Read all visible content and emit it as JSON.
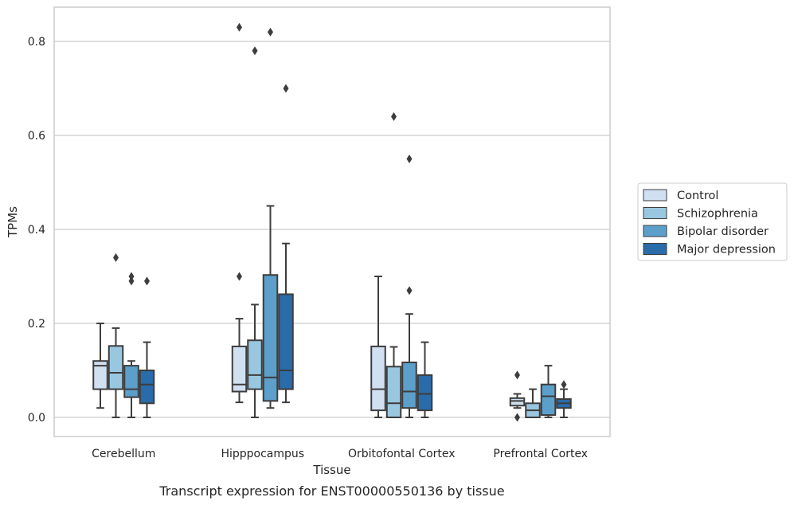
{
  "caption": "Transcript expression for ENST00000550136 by tissue",
  "chart_data": {
    "type": "box",
    "xlabel": "Tissue",
    "ylabel": "TPMs",
    "ylim": [
      -0.04,
      0.873
    ],
    "yticks": [
      0.0,
      0.2,
      0.4,
      0.6,
      0.8
    ],
    "ytick_labels": [
      "0.0",
      "0.2",
      "0.4",
      "0.6",
      "0.8"
    ],
    "grid": "horizontal",
    "legend_position": "right",
    "categories": [
      "Cerebellum",
      "Hipppocampus",
      "Orbitofontal Cortex",
      "Prefrontal Cortex"
    ],
    "series": [
      {
        "name": "Control",
        "color": "#d1e0f1",
        "boxes": [
          {
            "whislo": 0.02,
            "q1": 0.06,
            "med": 0.11,
            "q3": 0.12,
            "whishi": 0.2,
            "fliers": []
          },
          {
            "whislo": 0.032,
            "q1": 0.055,
            "med": 0.07,
            "q3": 0.151,
            "whishi": 0.21,
            "fliers": [
              0.3,
              0.83
            ]
          },
          {
            "whislo": 0.0,
            "q1": 0.015,
            "med": 0.06,
            "q3": 0.151,
            "whishi": 0.3,
            "fliers": []
          },
          {
            "whislo": 0.02,
            "q1": 0.025,
            "med": 0.035,
            "q3": 0.041,
            "whishi": 0.05,
            "fliers": [
              0.09,
              0.0
            ]
          }
        ]
      },
      {
        "name": "Schizophrenia",
        "color": "#9ac7e0",
        "boxes": [
          {
            "whislo": 0.0,
            "q1": 0.06,
            "med": 0.095,
            "q3": 0.152,
            "whishi": 0.19,
            "fliers": [
              0.34
            ]
          },
          {
            "whislo": 0.0,
            "q1": 0.06,
            "med": 0.09,
            "q3": 0.164,
            "whishi": 0.24,
            "fliers": [
              0.78
            ]
          },
          {
            "whislo": 0.0,
            "q1": 0.0,
            "med": 0.03,
            "q3": 0.108,
            "whishi": 0.15,
            "fliers": [
              0.64
            ]
          },
          {
            "whislo": 0.0,
            "q1": 0.0,
            "med": 0.015,
            "q3": 0.03,
            "whishi": 0.06,
            "fliers": []
          }
        ]
      },
      {
        "name": "Bipolar disorder",
        "color": "#5c9fcb",
        "boxes": [
          {
            "whislo": 0.0,
            "q1": 0.043,
            "med": 0.06,
            "q3": 0.11,
            "whishi": 0.12,
            "fliers": [
              0.3,
              0.29
            ]
          },
          {
            "whislo": 0.02,
            "q1": 0.035,
            "med": 0.085,
            "q3": 0.303,
            "whishi": 0.45,
            "fliers": [
              0.82
            ]
          },
          {
            "whislo": 0.0,
            "q1": 0.02,
            "med": 0.055,
            "q3": 0.117,
            "whishi": 0.22,
            "fliers": [
              0.55,
              0.27
            ]
          },
          {
            "whislo": 0.0,
            "q1": 0.005,
            "med": 0.045,
            "q3": 0.07,
            "whishi": 0.11,
            "fliers": []
          }
        ]
      },
      {
        "name": "Major depression",
        "color": "#2a6ba9",
        "boxes": [
          {
            "whislo": 0.0,
            "q1": 0.03,
            "med": 0.07,
            "q3": 0.1,
            "whishi": 0.16,
            "fliers": [
              0.29
            ]
          },
          {
            "whislo": 0.032,
            "q1": 0.06,
            "med": 0.1,
            "q3": 0.262,
            "whishi": 0.37,
            "fliers": [
              0.7
            ]
          },
          {
            "whislo": 0.0,
            "q1": 0.015,
            "med": 0.05,
            "q3": 0.09,
            "whishi": 0.16,
            "fliers": []
          },
          {
            "whislo": 0.0,
            "q1": 0.02,
            "med": 0.03,
            "q3": 0.039,
            "whishi": 0.06,
            "fliers": [
              0.07
            ]
          }
        ]
      }
    ]
  }
}
